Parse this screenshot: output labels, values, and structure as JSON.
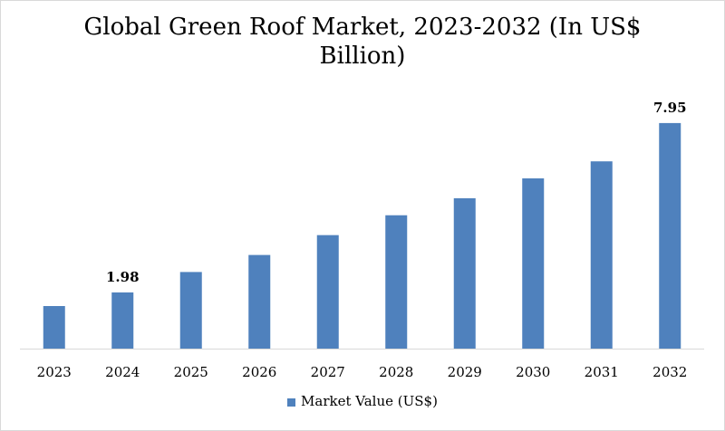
{
  "chart_data": {
    "type": "bar",
    "title_line1": "Global Green Roof Market, 2023-2032 (In US$",
    "title_line2": "Billion)",
    "categories": [
      "2023",
      "2024",
      "2025",
      "2026",
      "2027",
      "2028",
      "2029",
      "2030",
      "2031",
      "2032"
    ],
    "series": [
      {
        "name": "Market Value (US$)",
        "color": "#4f81bd",
        "values": [
          1.5,
          1.98,
          2.7,
          3.3,
          4.0,
          4.7,
          5.3,
          6.0,
          6.6,
          7.95
        ],
        "data_labels": {
          "2024": "1.98",
          "2032": "7.95"
        }
      }
    ],
    "ylim": [
      0,
      9
    ],
    "grid": false,
    "legend": "bottom"
  }
}
